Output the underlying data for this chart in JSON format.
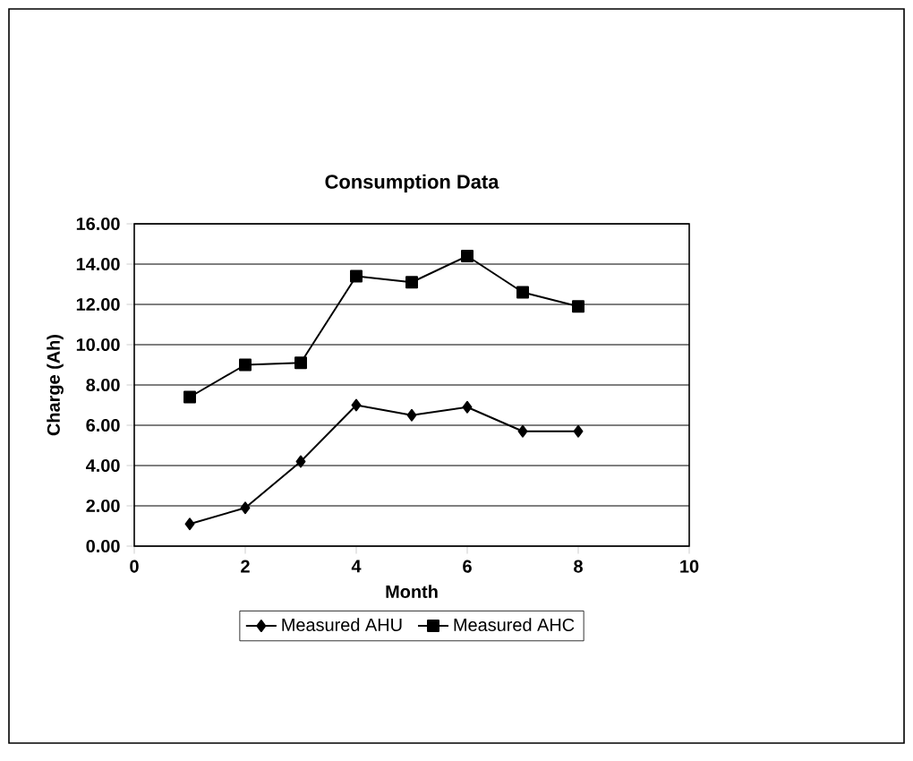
{
  "chart_data": {
    "type": "line",
    "title": "Consumption Data",
    "xlabel": "Month",
    "ylabel": "Charge (Ah)",
    "xlim": [
      0,
      10
    ],
    "xticks": [
      0,
      2,
      4,
      6,
      8,
      10
    ],
    "ylim": [
      0,
      16
    ],
    "yticks": [
      {
        "value": 0,
        "label": "0.00"
      },
      {
        "value": 2,
        "label": "2.00"
      },
      {
        "value": 4,
        "label": "4.00"
      },
      {
        "value": 6,
        "label": "6.00"
      },
      {
        "value": 8,
        "label": "8.00"
      },
      {
        "value": 10,
        "label": "10.00"
      },
      {
        "value": 12,
        "label": "12.00"
      },
      {
        "value": 14,
        "label": "14.00"
      },
      {
        "value": 16,
        "label": "16.00"
      }
    ],
    "grid": "y",
    "legend": "bottom",
    "line_style": "solid",
    "x": [
      1,
      2,
      3,
      4,
      5,
      6,
      7,
      8
    ],
    "series": [
      {
        "name": "Measured AHU",
        "color": "#000000",
        "marker": "diamond",
        "values": [
          1.1,
          1.9,
          4.2,
          7.0,
          6.5,
          6.9,
          5.7,
          5.7
        ]
      },
      {
        "name": "Measured AHC",
        "color": "#000000",
        "marker": "square",
        "values": [
          7.4,
          9.0,
          9.1,
          13.4,
          13.1,
          14.4,
          12.6,
          11.9
        ]
      }
    ]
  }
}
